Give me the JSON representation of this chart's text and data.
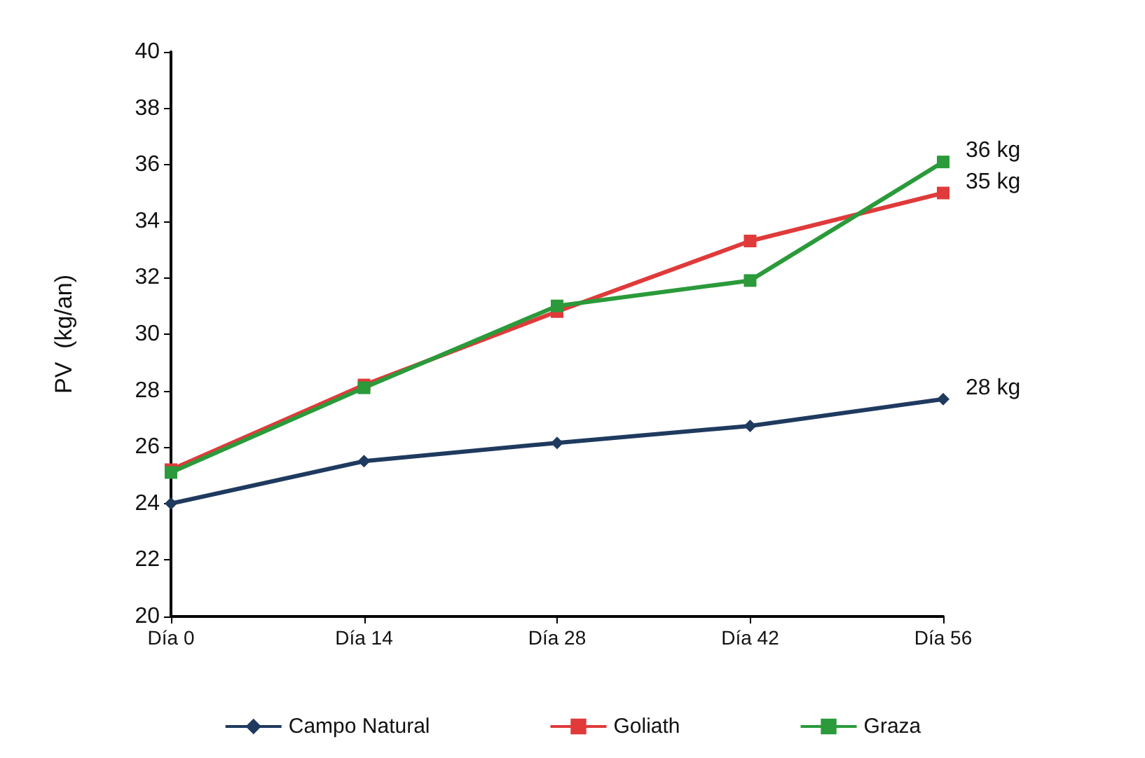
{
  "chart_data": {
    "type": "line",
    "ylabel": "PV  (kg/an)",
    "categories": [
      "Día 0",
      "Día 14",
      "Día 28",
      "Día 42",
      "Día 56"
    ],
    "series": [
      {
        "name": "Campo Natural",
        "color": "#1f3a5f",
        "marker": "diamond",
        "values": [
          24,
          25.5,
          26.15,
          26.75,
          27.7
        ]
      },
      {
        "name": "Goliath",
        "color": "#e03a3a",
        "marker": "square",
        "values": [
          25.2,
          28.2,
          30.8,
          33.3,
          35
        ]
      },
      {
        "name": "Graza",
        "color": "#2a9a3a",
        "marker": "square",
        "values": [
          25.1,
          28.1,
          31,
          31.9,
          36.1
        ]
      }
    ],
    "ylim": [
      20,
      40
    ],
    "yticks": [
      20,
      22,
      24,
      26,
      28,
      30,
      32,
      34,
      36,
      38,
      40
    ],
    "grid": false,
    "legend": "bottom",
    "annotations": [
      {
        "text": "36 kg",
        "x": "Día 56",
        "y": 36.1
      },
      {
        "text": "35 kg",
        "x": "Día 56",
        "y": 35
      },
      {
        "text": "28 kg",
        "x": "Día 56",
        "y": 27.7
      }
    ]
  }
}
